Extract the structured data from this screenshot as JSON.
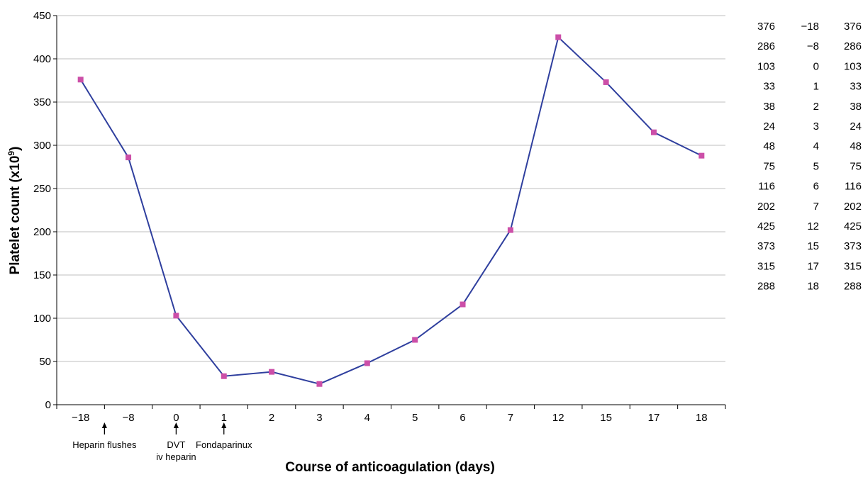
{
  "chart_data": {
    "type": "line",
    "title": "",
    "xlabel": "Course of anticoagulation (days)",
    "ylabel_main": "Platelet count (x10",
    "ylabel_sup": "9",
    "ylabel_close": ")",
    "categories": [
      "−18",
      "−8",
      "0",
      "1",
      "2",
      "3",
      "4",
      "5",
      "6",
      "7",
      "12",
      "15",
      "17",
      "18"
    ],
    "series": [
      {
        "values": [
          376,
          286,
          103,
          33,
          38,
          24,
          48,
          75,
          116,
          202,
          425,
          373,
          315,
          288
        ]
      }
    ],
    "ylim": [
      0,
      450
    ],
    "yticks": [
      "0",
      "50",
      "100",
      "150",
      "200",
      "250",
      "300",
      "350",
      "400",
      "450"
    ],
    "grid": true,
    "line_color": "#2f3f9e",
    "marker_color": "#cc4fa8",
    "annotations": [
      {
        "lines": [
          "Heparin flushes"
        ],
        "position": "between −18 and −8"
      },
      {
        "lines": [
          "DVT",
          "iv heparin"
        ],
        "position": "at 0"
      },
      {
        "lines": [
          "Fondaparinux"
        ],
        "position": "at 1"
      }
    ],
    "data_table": [
      [
        "376",
        "−18",
        "376"
      ],
      [
        "286",
        "−8",
        "286"
      ],
      [
        "103",
        "0",
        "103"
      ],
      [
        "33",
        "1",
        "33"
      ],
      [
        "38",
        "2",
        "38"
      ],
      [
        "24",
        "3",
        "24"
      ],
      [
        "48",
        "4",
        "48"
      ],
      [
        "75",
        "5",
        "75"
      ],
      [
        "116",
        "6",
        "116"
      ],
      [
        "202",
        "7",
        "202"
      ],
      [
        "425",
        "12",
        "425"
      ],
      [
        "373",
        "15",
        "373"
      ],
      [
        "315",
        "17",
        "315"
      ],
      [
        "288",
        "18",
        "288"
      ]
    ]
  }
}
